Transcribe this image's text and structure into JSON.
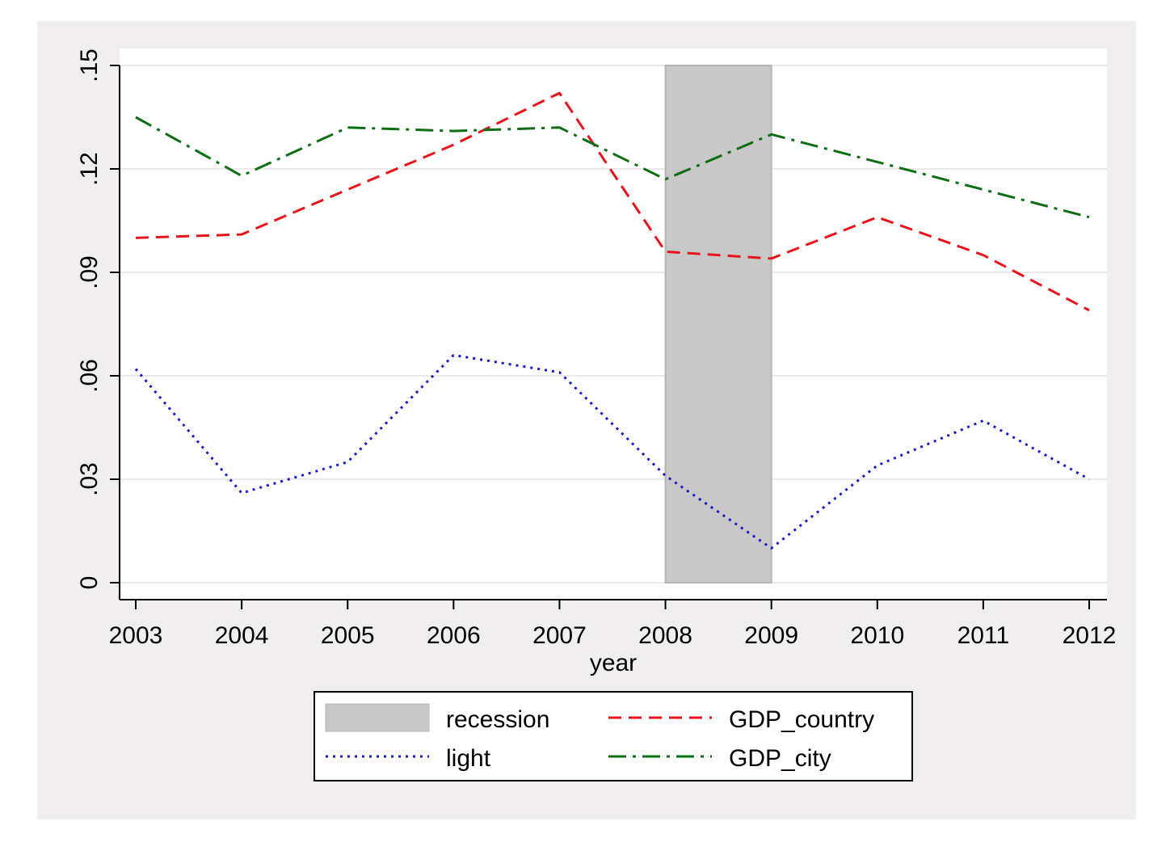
{
  "chart_data": {
    "type": "line",
    "title": "",
    "xlabel": "year",
    "ylabel": "",
    "x": [
      2003,
      2004,
      2005,
      2006,
      2007,
      2008,
      2009,
      2010,
      2011,
      2012
    ],
    "xlim": [
      2003,
      2012
    ],
    "ylim": [
      0,
      0.15
    ],
    "y_ticks": [
      0,
      0.03,
      0.06,
      0.09,
      0.12,
      0.15
    ],
    "y_tick_labels": [
      "0",
      ".03",
      ".06",
      ".09",
      ".12",
      ".15"
    ],
    "x_tick_labels": [
      "2003",
      "2004",
      "2005",
      "2006",
      "2007",
      "2008",
      "2009",
      "2010",
      "2011",
      "2012"
    ],
    "grid": true,
    "legend_position": "bottom",
    "shaded_regions": [
      {
        "name": "recession",
        "x_start": 2008,
        "x_end": 2009,
        "y_top": 0.15,
        "color": "#c8c8c8"
      }
    ],
    "series": [
      {
        "name": "light",
        "style": "dotted",
        "color": "#1a1acc",
        "values": [
          0.062,
          0.026,
          0.035,
          0.066,
          0.061,
          0.031,
          0.01,
          0.034,
          0.047,
          0.03
        ]
      },
      {
        "name": "GDP_country",
        "style": "dashed",
        "color": "#e8141a",
        "values": [
          0.1,
          0.101,
          0.114,
          0.127,
          0.142,
          0.096,
          0.094,
          0.106,
          0.095,
          0.079
        ]
      },
      {
        "name": "GDP_city",
        "style": "dashdot",
        "color": "#0e6e14",
        "values": [
          0.135,
          0.118,
          0.132,
          0.131,
          0.132,
          0.117,
          0.13,
          0.122,
          0.114,
          0.106
        ]
      }
    ],
    "legend": {
      "entries": [
        {
          "label": "recession",
          "key": "recession"
        },
        {
          "label": "GDP_country",
          "key": "GDP_country"
        },
        {
          "label": "light",
          "key": "light"
        },
        {
          "label": "GDP_city",
          "key": "GDP_city"
        }
      ]
    }
  },
  "colors": {
    "outer_background": "#f0eeee",
    "plot_background": "#ffffff",
    "gridline": "#ece8e8",
    "axis": "#000000"
  }
}
